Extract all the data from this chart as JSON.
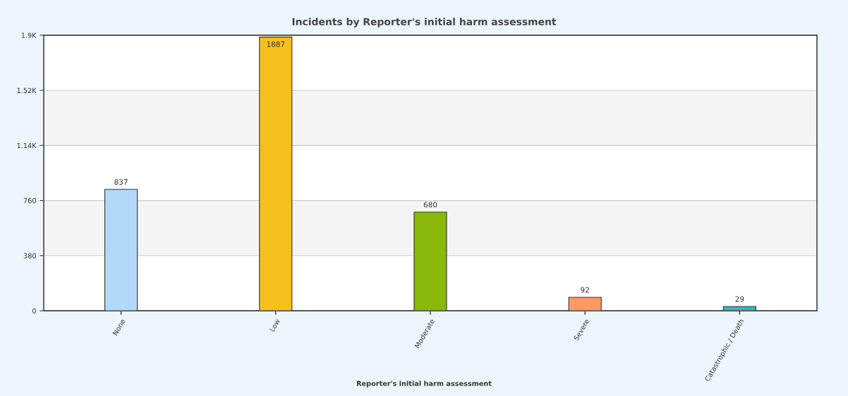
{
  "chart_data": {
    "type": "bar",
    "title": "Incidents by Reporter's initial harm assessment",
    "xlabel": "Reporter's initial harm assessment",
    "categories": [
      "None",
      "Low",
      "Moderate",
      "Severe",
      "Catastrophic / Death"
    ],
    "values": [
      837,
      1887,
      680,
      92,
      29
    ],
    "colors": [
      "#b3d9f7",
      "#f5bf1d",
      "#8ab80b",
      "#ff9966",
      "#3fb4b0"
    ],
    "ylim": [
      0,
      1900
    ],
    "yticks": [
      0,
      380,
      760,
      {
        "value": 1140,
        "label": "1.14K"
      },
      {
        "value": 1520,
        "label": "1.52K"
      },
      {
        "value": 1900,
        "label": "1.9K"
      }
    ],
    "bands": [
      {
        "axis": "y",
        "from": 380,
        "to": 760,
        "color": "#f5f5f5"
      },
      {
        "axis": "y",
        "from": 1140,
        "to": 1520,
        "color": "#f5f5f5"
      }
    ],
    "grid": "y",
    "data_labels": true,
    "legend": false
  }
}
